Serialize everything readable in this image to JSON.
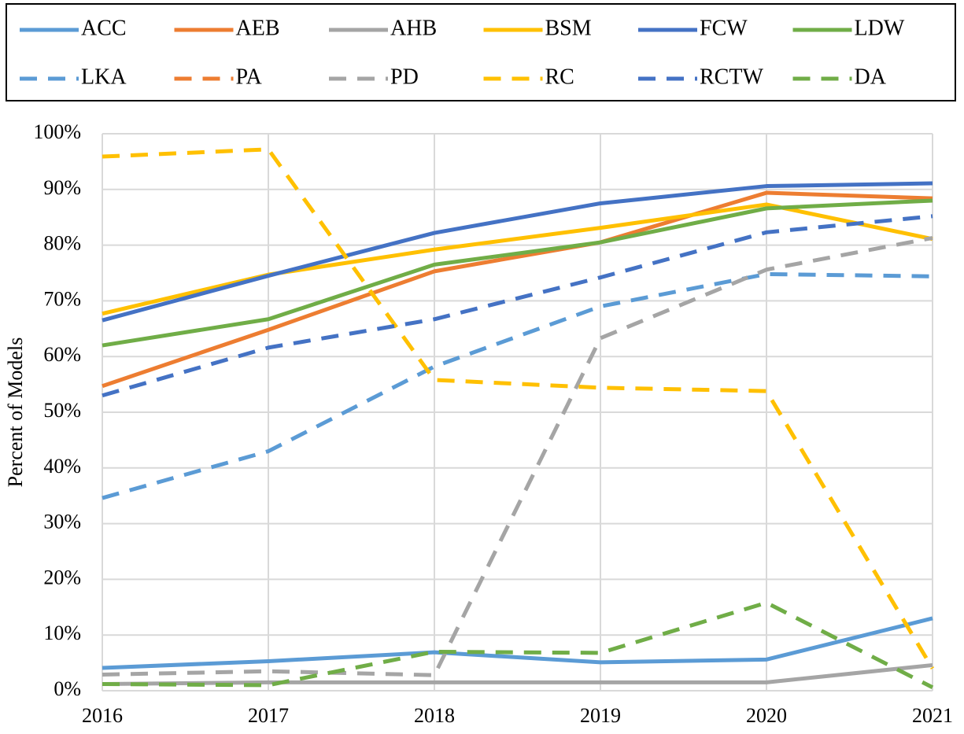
{
  "chart_data": {
    "type": "line",
    "y_label": "Percent of Models",
    "x": [
      2016,
      2017,
      2018,
      2019,
      2020,
      2021
    ],
    "xlim": [
      2016,
      2021
    ],
    "xticks": [
      2016,
      2017,
      2018,
      2019,
      2020,
      2021
    ],
    "ylim": [
      0,
      100
    ],
    "yticks": [
      {
        "value": 0,
        "label": "0%"
      },
      {
        "value": 10,
        "label": "10%"
      },
      {
        "value": 20,
        "label": "20%"
      },
      {
        "value": 30,
        "label": "30%"
      },
      {
        "value": 40,
        "label": "40%"
      },
      {
        "value": 50,
        "label": "50%"
      },
      {
        "value": 60,
        "label": "60%"
      },
      {
        "value": 70,
        "label": "70%"
      },
      {
        "value": 80,
        "label": "80%"
      },
      {
        "value": 90,
        "label": "90%"
      },
      {
        "value": 100,
        "label": "100%"
      }
    ],
    "grid": true,
    "legend": "top",
    "series": [
      {
        "name": "ACC",
        "color": "#5b9bd5",
        "dashed": false,
        "values": [
          4.1,
          5.3,
          6.9,
          5.1,
          5.6,
          13
        ]
      },
      {
        "name": "AEB",
        "color": "#ed7d31",
        "dashed": false,
        "values": [
          54.7,
          64.8,
          75.3,
          80.5,
          89.4,
          88.4
        ]
      },
      {
        "name": "AHB",
        "color": "#a5a5a5",
        "dashed": false,
        "values": [
          1.2,
          1.5,
          1.5,
          1.5,
          1.5,
          4.6
        ]
      },
      {
        "name": "BSM",
        "color": "#ffc000",
        "dashed": false,
        "values": [
          67.7,
          74.7,
          79.2,
          83.1,
          87.3,
          81.1
        ]
      },
      {
        "name": "FCW",
        "color": "#4472c4",
        "dashed": false,
        "values": [
          66.5,
          74.5,
          82.2,
          87.5,
          90.6,
          91.1
        ]
      },
      {
        "name": "LDW",
        "color": "#70ad47",
        "dashed": false,
        "values": [
          62,
          66.7,
          76.5,
          80.5,
          86.6,
          88
        ]
      },
      {
        "name": "LKA",
        "color": "#5b9bd5",
        "dashed": true,
        "values": [
          34.6,
          43,
          58.2,
          69,
          74.8,
          74.4
        ]
      },
      {
        "name": "PA",
        "color": "#ed7d31",
        "dashed": true,
        "values": [
          null,
          null,
          null,
          null,
          null,
          null
        ]
      },
      {
        "name": "PD",
        "color": "#a5a5a5",
        "dashed": true,
        "values": [
          2.9,
          3.5,
          2.8,
          63.3,
          75.6,
          81.3
        ]
      },
      {
        "name": "RC",
        "color": "#ffc000",
        "dashed": true,
        "values": [
          95.9,
          97.2,
          55.8,
          54.4,
          53.8,
          4
        ]
      },
      {
        "name": "RCTW",
        "color": "#4472c4",
        "dashed": true,
        "values": [
          53,
          61.6,
          66.7,
          74.2,
          82.3,
          85.2
        ]
      },
      {
        "name": "DA",
        "color": "#70ad47",
        "dashed": true,
        "values": [
          1.2,
          1,
          7,
          6.8,
          15.8,
          0.6
        ]
      }
    ]
  }
}
